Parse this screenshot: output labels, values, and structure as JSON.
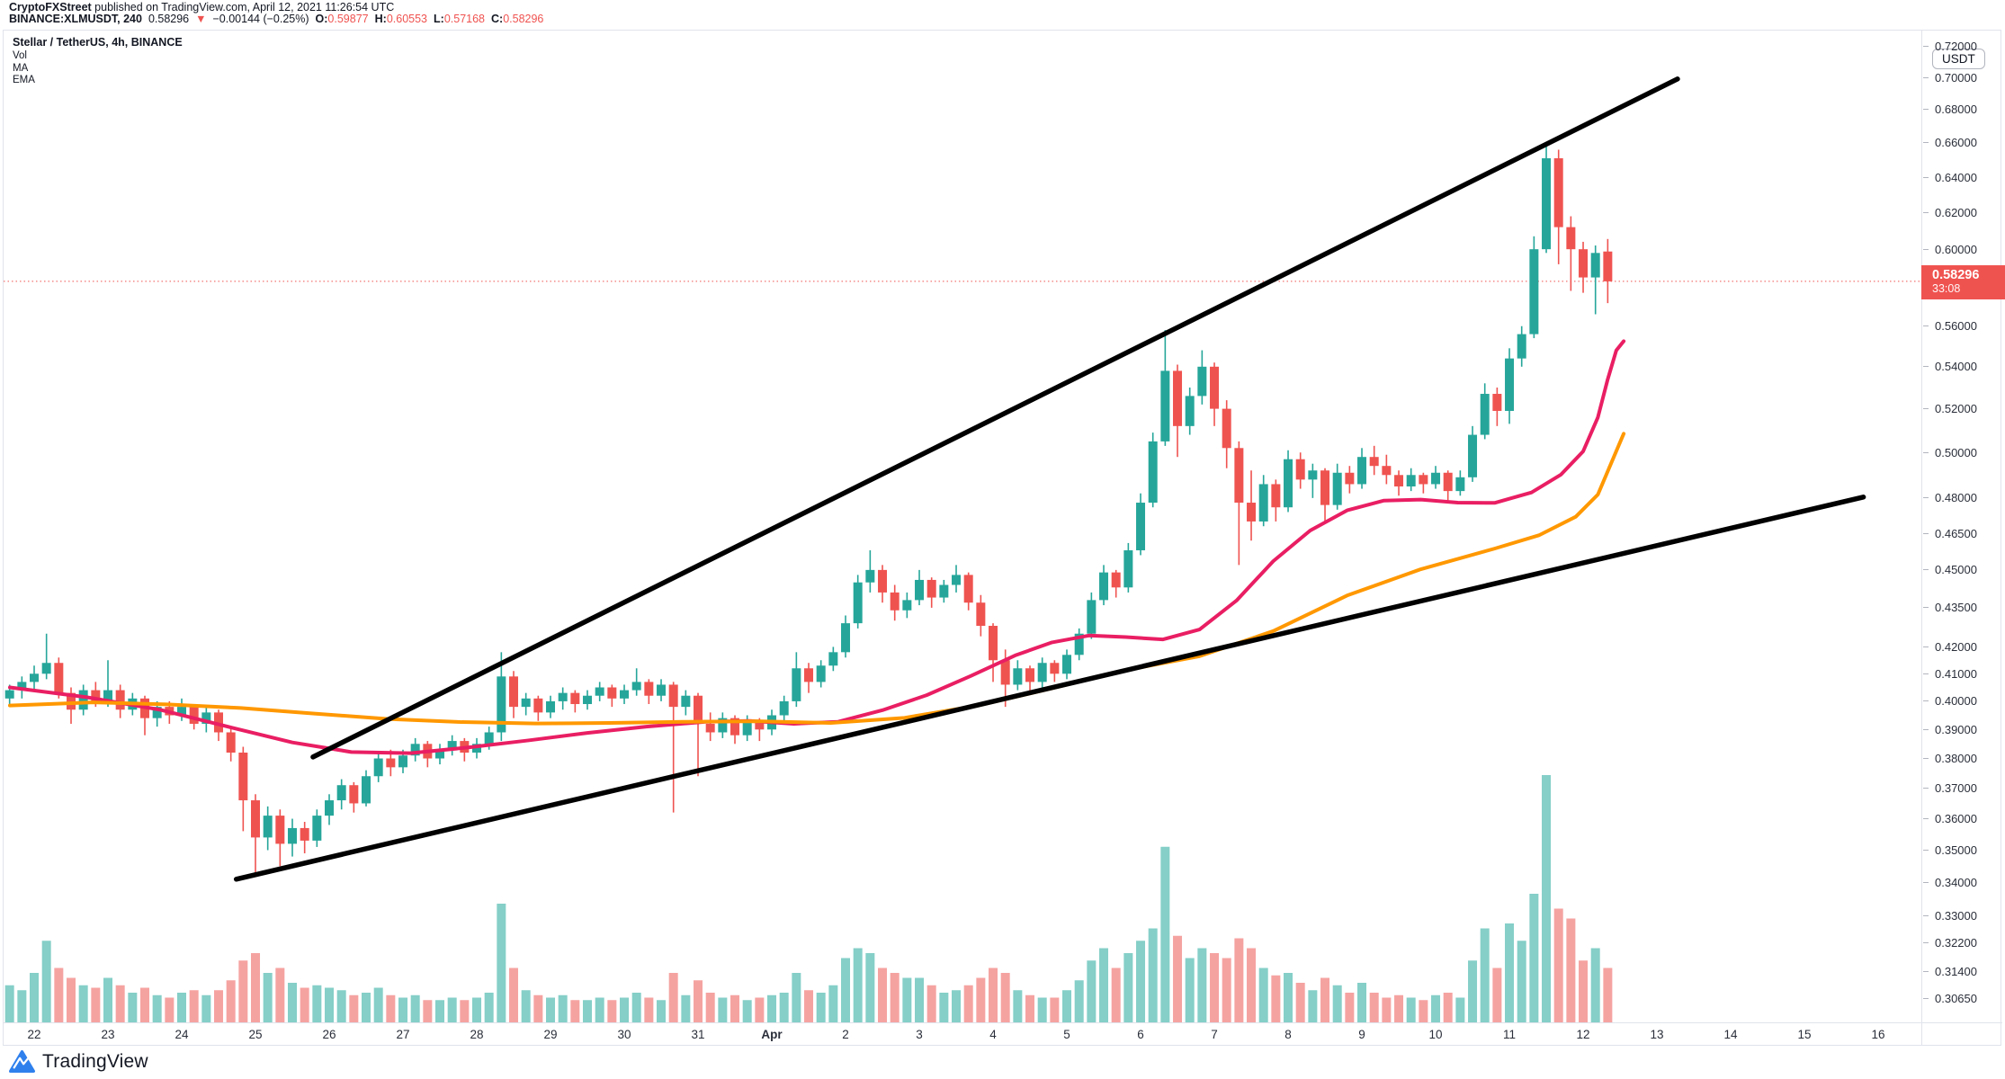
{
  "header": {
    "publisher": "CryptoFXStreet",
    "publish_info": " published on TradingView.com, April 12, 2021 11:26:54 UTC",
    "symbol": "BINANCE:XLMUSDT, 240",
    "last": "0.58296",
    "direction": "▼",
    "change": "−0.00144 (−0.25%)",
    "o_label": "O:",
    "o": "0.59877",
    "h_label": "H:",
    "h": "0.60553",
    "l_label": "L:",
    "l": "0.57168",
    "c_label": "C:",
    "c": "0.58296"
  },
  "legend": {
    "title": "Stellar / TetherUS, 4h, BINANCE",
    "items": [
      "Vol",
      "MA",
      "EMA"
    ]
  },
  "price_axis": {
    "unit": "USDT",
    "tick_labels": [
      "0.72000",
      "0.70000",
      "0.68000",
      "0.66000",
      "0.64000",
      "0.62000",
      "0.60000",
      "0.56000",
      "0.54000",
      "0.52000",
      "0.50000",
      "0.48000",
      "0.46500",
      "0.45000",
      "0.43500",
      "0.42000",
      "0.41000",
      "0.40000",
      "0.39000",
      "0.38000",
      "0.37000",
      "0.36000",
      "0.35000",
      "0.34000",
      "0.33000",
      "0.32200",
      "0.31400",
      "0.30650"
    ],
    "last_price": {
      "value": "0.58296",
      "countdown": "33:08"
    }
  },
  "time_axis": {
    "labels": [
      {
        "t": "22",
        "d": 0
      },
      {
        "t": "23",
        "d": 1
      },
      {
        "t": "24",
        "d": 2
      },
      {
        "t": "25",
        "d": 3
      },
      {
        "t": "26",
        "d": 4
      },
      {
        "t": "27",
        "d": 5
      },
      {
        "t": "28",
        "d": 6
      },
      {
        "t": "29",
        "d": 7
      },
      {
        "t": "30",
        "d": 8
      },
      {
        "t": "31",
        "d": 9
      },
      {
        "t": "Apr",
        "d": 10,
        "b": 1
      },
      {
        "t": "2",
        "d": 11
      },
      {
        "t": "3",
        "d": 12
      },
      {
        "t": "4",
        "d": 13
      },
      {
        "t": "5",
        "d": 14
      },
      {
        "t": "6",
        "d": 15
      },
      {
        "t": "7",
        "d": 16
      },
      {
        "t": "8",
        "d": 17
      },
      {
        "t": "9",
        "d": 18
      },
      {
        "t": "10",
        "d": 19
      },
      {
        "t": "11",
        "d": 20
      },
      {
        "t": "12",
        "d": 21
      },
      {
        "t": "13",
        "d": 22
      },
      {
        "t": "14",
        "d": 23
      },
      {
        "t": "15",
        "d": 24
      },
      {
        "t": "16",
        "d": 25
      }
    ]
  },
  "watermark": {
    "text": "TradingView"
  },
  "colors": {
    "up": "#26a69a",
    "down": "#ef5350",
    "vol_up": "#85cfc8",
    "vol_down": "#f5a3a1",
    "ma": "#e91e63",
    "ema": "#ff9800",
    "trendline": "#000000",
    "last_price_line": "#ef5350",
    "label_bg": "#ef5350",
    "logo_blue": "#2f80ed",
    "border": "#e0e3eb"
  },
  "chart_data": {
    "type": "candlestick",
    "title": "Stellar / TetherUS, 4h, BINANCE",
    "symbol": "BINANCE:XLMUSDT",
    "interval": "4h",
    "price_scale": "log",
    "unit": "USDT",
    "y_range": [
      0.3,
      0.7286
    ],
    "x_unit": "days since 2021-03-22 00:00 UTC, 6 candles per day",
    "first_candle_day": -0.33333,
    "candle_step_days": 0.16667,
    "last_price": 0.58296,
    "current_candle": {
      "o": 0.59877,
      "h": 0.60553,
      "l": 0.57168,
      "c": 0.58296
    },
    "ohlcv": [
      [
        0.401,
        0.406,
        0.398,
        0.404,
        0.15
      ],
      [
        0.404,
        0.409,
        0.401,
        0.407,
        0.13
      ],
      [
        0.407,
        0.413,
        0.404,
        0.41,
        0.2
      ],
      [
        0.41,
        0.425,
        0.408,
        0.414,
        0.33
      ],
      [
        0.414,
        0.416,
        0.401,
        0.403,
        0.22
      ],
      [
        0.403,
        0.405,
        0.392,
        0.397,
        0.18
      ],
      [
        0.397,
        0.406,
        0.395,
        0.404,
        0.15
      ],
      [
        0.404,
        0.407,
        0.398,
        0.4,
        0.14
      ],
      [
        0.4,
        0.415,
        0.398,
        0.404,
        0.18
      ],
      [
        0.404,
        0.406,
        0.394,
        0.397,
        0.15
      ],
      [
        0.397,
        0.403,
        0.395,
        0.401,
        0.12
      ],
      [
        0.401,
        0.402,
        0.388,
        0.394,
        0.14
      ],
      [
        0.394,
        0.4,
        0.391,
        0.398,
        0.11
      ],
      [
        0.398,
        0.4,
        0.392,
        0.395,
        0.1
      ],
      [
        0.395,
        0.401,
        0.393,
        0.398,
        0.12
      ],
      [
        0.398,
        0.399,
        0.39,
        0.392,
        0.13
      ],
      [
        0.392,
        0.398,
        0.389,
        0.396,
        0.11
      ],
      [
        0.396,
        0.397,
        0.386,
        0.389,
        0.13
      ],
      [
        0.389,
        0.391,
        0.379,
        0.382,
        0.17
      ],
      [
        0.382,
        0.384,
        0.356,
        0.366,
        0.25
      ],
      [
        0.366,
        0.368,
        0.343,
        0.354,
        0.28
      ],
      [
        0.354,
        0.364,
        0.35,
        0.361,
        0.2
      ],
      [
        0.361,
        0.363,
        0.345,
        0.352,
        0.22
      ],
      [
        0.352,
        0.36,
        0.348,
        0.357,
        0.16
      ],
      [
        0.357,
        0.359,
        0.349,
        0.353,
        0.14
      ],
      [
        0.353,
        0.363,
        0.351,
        0.361,
        0.15
      ],
      [
        0.361,
        0.368,
        0.358,
        0.366,
        0.14
      ],
      [
        0.366,
        0.373,
        0.363,
        0.371,
        0.13
      ],
      [
        0.371,
        0.372,
        0.362,
        0.365,
        0.11
      ],
      [
        0.365,
        0.376,
        0.364,
        0.374,
        0.12
      ],
      [
        0.374,
        0.382,
        0.372,
        0.38,
        0.14
      ],
      [
        0.38,
        0.383,
        0.374,
        0.377,
        0.11
      ],
      [
        0.377,
        0.383,
        0.375,
        0.381,
        0.1
      ],
      [
        0.381,
        0.387,
        0.379,
        0.385,
        0.11
      ],
      [
        0.385,
        0.386,
        0.377,
        0.38,
        0.09
      ],
      [
        0.38,
        0.385,
        0.378,
        0.383,
        0.09
      ],
      [
        0.383,
        0.388,
        0.381,
        0.386,
        0.1
      ],
      [
        0.386,
        0.387,
        0.379,
        0.382,
        0.09
      ],
      [
        0.382,
        0.387,
        0.38,
        0.385,
        0.1
      ],
      [
        0.385,
        0.391,
        0.383,
        0.389,
        0.12
      ],
      [
        0.389,
        0.418,
        0.386,
        0.409,
        0.48
      ],
      [
        0.409,
        0.411,
        0.394,
        0.398,
        0.22
      ],
      [
        0.398,
        0.403,
        0.395,
        0.401,
        0.13
      ],
      [
        0.401,
        0.402,
        0.393,
        0.396,
        0.11
      ],
      [
        0.396,
        0.402,
        0.394,
        0.4,
        0.1
      ],
      [
        0.4,
        0.405,
        0.397,
        0.403,
        0.11
      ],
      [
        0.403,
        0.404,
        0.396,
        0.399,
        0.09
      ],
      [
        0.399,
        0.404,
        0.397,
        0.402,
        0.09
      ],
      [
        0.402,
        0.407,
        0.4,
        0.405,
        0.1
      ],
      [
        0.405,
        0.406,
        0.398,
        0.401,
        0.09
      ],
      [
        0.401,
        0.406,
        0.399,
        0.404,
        0.1
      ],
      [
        0.404,
        0.412,
        0.402,
        0.407,
        0.12
      ],
      [
        0.407,
        0.408,
        0.399,
        0.402,
        0.1
      ],
      [
        0.402,
        0.408,
        0.4,
        0.406,
        0.09
      ],
      [
        0.406,
        0.407,
        0.362,
        0.398,
        0.2
      ],
      [
        0.398,
        0.404,
        0.395,
        0.402,
        0.11
      ],
      [
        0.402,
        0.403,
        0.374,
        0.392,
        0.17
      ],
      [
        0.392,
        0.396,
        0.386,
        0.389,
        0.12
      ],
      [
        0.389,
        0.396,
        0.387,
        0.394,
        0.1
      ],
      [
        0.394,
        0.395,
        0.385,
        0.388,
        0.11
      ],
      [
        0.388,
        0.395,
        0.386,
        0.393,
        0.09
      ],
      [
        0.393,
        0.394,
        0.386,
        0.39,
        0.1
      ],
      [
        0.39,
        0.397,
        0.388,
        0.395,
        0.11
      ],
      [
        0.395,
        0.402,
        0.393,
        0.4,
        0.12
      ],
      [
        0.4,
        0.418,
        0.398,
        0.412,
        0.2
      ],
      [
        0.412,
        0.414,
        0.403,
        0.407,
        0.13
      ],
      [
        0.407,
        0.415,
        0.405,
        0.413,
        0.12
      ],
      [
        0.413,
        0.42,
        0.411,
        0.418,
        0.15
      ],
      [
        0.418,
        0.432,
        0.416,
        0.429,
        0.26
      ],
      [
        0.429,
        0.448,
        0.427,
        0.445,
        0.3
      ],
      [
        0.445,
        0.458,
        0.441,
        0.45,
        0.28
      ],
      [
        0.45,
        0.452,
        0.437,
        0.441,
        0.22
      ],
      [
        0.441,
        0.444,
        0.43,
        0.434,
        0.2
      ],
      [
        0.434,
        0.441,
        0.431,
        0.438,
        0.18
      ],
      [
        0.438,
        0.45,
        0.436,
        0.446,
        0.18
      ],
      [
        0.446,
        0.447,
        0.435,
        0.439,
        0.15
      ],
      [
        0.439,
        0.446,
        0.437,
        0.444,
        0.12
      ],
      [
        0.444,
        0.452,
        0.441,
        0.448,
        0.13
      ],
      [
        0.448,
        0.449,
        0.434,
        0.437,
        0.15
      ],
      [
        0.437,
        0.44,
        0.424,
        0.428,
        0.18
      ],
      [
        0.428,
        0.429,
        0.407,
        0.415,
        0.22
      ],
      [
        0.415,
        0.419,
        0.398,
        0.406,
        0.2
      ],
      [
        0.406,
        0.415,
        0.404,
        0.412,
        0.13
      ],
      [
        0.412,
        0.413,
        0.403,
        0.407,
        0.11
      ],
      [
        0.407,
        0.416,
        0.405,
        0.414,
        0.1
      ],
      [
        0.414,
        0.415,
        0.407,
        0.41,
        0.1
      ],
      [
        0.41,
        0.419,
        0.408,
        0.417,
        0.13
      ],
      [
        0.417,
        0.427,
        0.415,
        0.425,
        0.17
      ],
      [
        0.425,
        0.441,
        0.423,
        0.438,
        0.25
      ],
      [
        0.438,
        0.452,
        0.436,
        0.449,
        0.3
      ],
      [
        0.449,
        0.45,
        0.439,
        0.443,
        0.22
      ],
      [
        0.443,
        0.461,
        0.441,
        0.458,
        0.28
      ],
      [
        0.458,
        0.482,
        0.456,
        0.478,
        0.33
      ],
      [
        0.478,
        0.509,
        0.476,
        0.505,
        0.38
      ],
      [
        0.505,
        0.558,
        0.503,
        0.538,
        0.71
      ],
      [
        0.538,
        0.541,
        0.498,
        0.512,
        0.35
      ],
      [
        0.512,
        0.53,
        0.508,
        0.526,
        0.26
      ],
      [
        0.526,
        0.548,
        0.522,
        0.54,
        0.3
      ],
      [
        0.54,
        0.542,
        0.512,
        0.52,
        0.28
      ],
      [
        0.52,
        0.524,
        0.493,
        0.502,
        0.26
      ],
      [
        0.502,
        0.505,
        0.452,
        0.478,
        0.34
      ],
      [
        0.478,
        0.492,
        0.462,
        0.47,
        0.3
      ],
      [
        0.47,
        0.49,
        0.468,
        0.486,
        0.22
      ],
      [
        0.486,
        0.488,
        0.47,
        0.476,
        0.19
      ],
      [
        0.476,
        0.501,
        0.474,
        0.497,
        0.2
      ],
      [
        0.497,
        0.5,
        0.484,
        0.488,
        0.16
      ],
      [
        0.488,
        0.495,
        0.48,
        0.492,
        0.13
      ],
      [
        0.492,
        0.493,
        0.47,
        0.477,
        0.18
      ],
      [
        0.477,
        0.495,
        0.475,
        0.491,
        0.15
      ],
      [
        0.491,
        0.494,
        0.482,
        0.486,
        0.12
      ],
      [
        0.486,
        0.502,
        0.484,
        0.498,
        0.16
      ],
      [
        0.498,
        0.503,
        0.49,
        0.494,
        0.12
      ],
      [
        0.494,
        0.499,
        0.486,
        0.49,
        0.1
      ],
      [
        0.49,
        0.492,
        0.481,
        0.485,
        0.11
      ],
      [
        0.485,
        0.493,
        0.483,
        0.49,
        0.1
      ],
      [
        0.49,
        0.491,
        0.482,
        0.486,
        0.09
      ],
      [
        0.486,
        0.494,
        0.484,
        0.491,
        0.11
      ],
      [
        0.491,
        0.492,
        0.479,
        0.483,
        0.12
      ],
      [
        0.483,
        0.492,
        0.481,
        0.489,
        0.1
      ],
      [
        0.489,
        0.512,
        0.487,
        0.508,
        0.25
      ],
      [
        0.508,
        0.532,
        0.506,
        0.527,
        0.38
      ],
      [
        0.527,
        0.53,
        0.512,
        0.519,
        0.22
      ],
      [
        0.519,
        0.549,
        0.513,
        0.544,
        0.4
      ],
      [
        0.544,
        0.56,
        0.54,
        0.556,
        0.33
      ],
      [
        0.556,
        0.607,
        0.554,
        0.6,
        0.52
      ],
      [
        0.6,
        0.66,
        0.598,
        0.651,
        1.0
      ],
      [
        0.651,
        0.656,
        0.592,
        0.612,
        0.46
      ],
      [
        0.612,
        0.618,
        0.578,
        0.6,
        0.42
      ],
      [
        0.6,
        0.604,
        0.577,
        0.585,
        0.25
      ],
      [
        0.585,
        0.602,
        0.566,
        0.598,
        0.3
      ],
      [
        0.59877,
        0.60553,
        0.57168,
        0.58296,
        0.22
      ]
    ],
    "ma_points": [
      [
        -0.33,
        0.405
      ],
      [
        0.7,
        0.4015
      ],
      [
        1.7,
        0.397
      ],
      [
        2.7,
        0.3905
      ],
      [
        3.5,
        0.3855
      ],
      [
        4.3,
        0.3822
      ],
      [
        5.1,
        0.3818
      ],
      [
        5.9,
        0.3838
      ],
      [
        6.7,
        0.3862
      ],
      [
        7.5,
        0.3888
      ],
      [
        8.3,
        0.391
      ],
      [
        9.1,
        0.3927
      ],
      [
        9.7,
        0.393
      ],
      [
        10.3,
        0.392
      ],
      [
        10.9,
        0.3927
      ],
      [
        11.5,
        0.3968
      ],
      [
        12.1,
        0.4022
      ],
      [
        12.7,
        0.4092
      ],
      [
        13.3,
        0.4168
      ],
      [
        13.8,
        0.4217
      ],
      [
        14.3,
        0.4243
      ],
      [
        14.8,
        0.4237
      ],
      [
        15.3,
        0.4228
      ],
      [
        15.8,
        0.4266
      ],
      [
        16.3,
        0.4378
      ],
      [
        16.8,
        0.4536
      ],
      [
        17.3,
        0.4662
      ],
      [
        17.8,
        0.4747
      ],
      [
        18.3,
        0.4789
      ],
      [
        18.8,
        0.4793
      ],
      [
        19.3,
        0.478
      ],
      [
        19.8,
        0.4779
      ],
      [
        20.3,
        0.4824
      ],
      [
        20.7,
        0.4902
      ],
      [
        21.0,
        0.5005
      ],
      [
        21.2,
        0.516
      ],
      [
        21.33,
        0.5335
      ],
      [
        21.45,
        0.548
      ],
      [
        21.55,
        0.5525
      ]
    ],
    "ema_points": [
      [
        -0.33,
        0.3985
      ],
      [
        0.8,
        0.3996
      ],
      [
        1.8,
        0.3989
      ],
      [
        2.8,
        0.3976
      ],
      [
        3.8,
        0.3956
      ],
      [
        4.8,
        0.3937
      ],
      [
        5.8,
        0.3926
      ],
      [
        6.8,
        0.3921
      ],
      [
        7.8,
        0.3923
      ],
      [
        8.8,
        0.3927
      ],
      [
        9.8,
        0.3929
      ],
      [
        10.8,
        0.3923
      ],
      [
        11.8,
        0.3941
      ],
      [
        12.8,
        0.3985
      ],
      [
        13.8,
        0.4047
      ],
      [
        14.8,
        0.4113
      ],
      [
        15.8,
        0.4165
      ],
      [
        16.8,
        0.426
      ],
      [
        17.8,
        0.4398
      ],
      [
        18.8,
        0.4503
      ],
      [
        19.8,
        0.4587
      ],
      [
        20.4,
        0.4642
      ],
      [
        20.9,
        0.472
      ],
      [
        21.2,
        0.4815
      ],
      [
        21.55,
        0.5085
      ]
    ],
    "trendlines": [
      {
        "name": "upper-channel-line",
        "from": [
          3.78,
          0.3805
        ],
        "to": [
          22.28,
          0.699
        ]
      },
      {
        "name": "lower-channel-line",
        "from": [
          2.74,
          0.341
        ],
        "to": [
          24.8,
          0.4804
        ]
      }
    ]
  }
}
